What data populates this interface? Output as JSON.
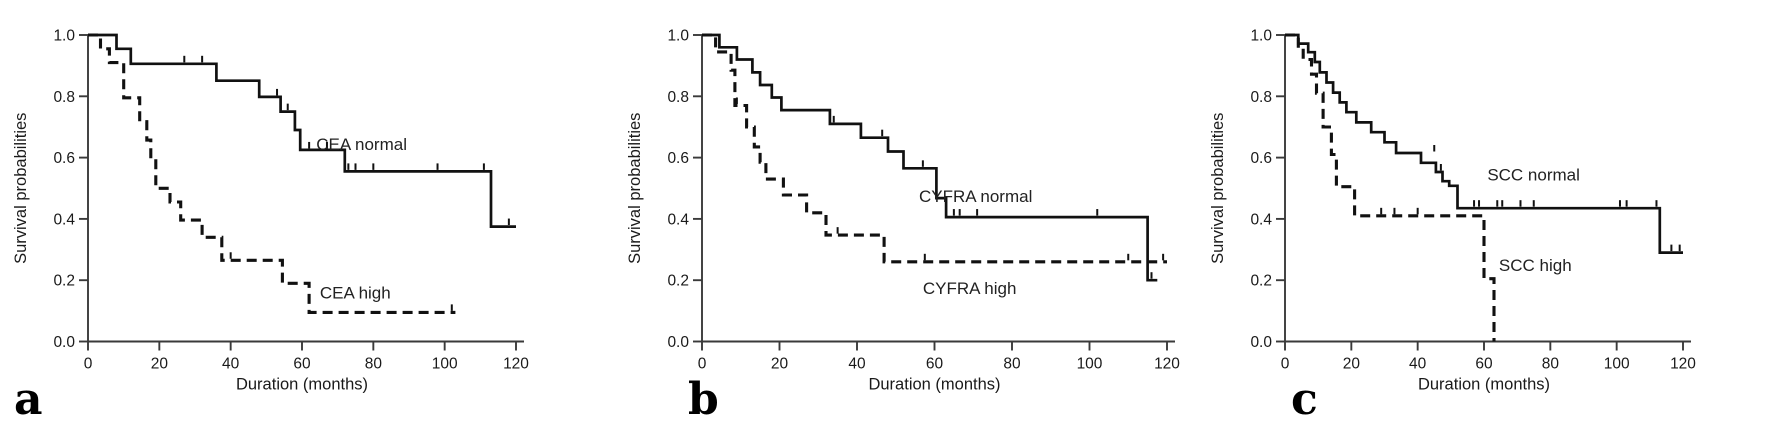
{
  "page": {
    "background": "#ffffff"
  },
  "axes_common": {
    "xlabel": "Duration (months)",
    "ylabel": "Survival probabilities",
    "xticks": [
      "0",
      "20",
      "40",
      "60",
      "80",
      "100",
      "120"
    ],
    "yticks": [
      "0.0",
      "0.2",
      "0.4",
      "0.6",
      "0.8",
      "1.0"
    ],
    "line_color": "#111111",
    "axis_color": "#3a3a3a"
  },
  "chart_data": [
    {
      "type": "line",
      "subtype": "kaplan-meier-step",
      "panel_letter": "a",
      "title": "",
      "xlabel": "Duration (months)",
      "ylabel": "Survival probabilities",
      "xlim": [
        0,
        120
      ],
      "ylim": [
        0.0,
        1.0
      ],
      "xticks": [
        0,
        20,
        40,
        60,
        80,
        100,
        120
      ],
      "yticks": [
        "0.0",
        "0.2",
        "0.4",
        "0.6",
        "0.8",
        "1.0"
      ],
      "grid": false,
      "legend_position": "inline",
      "series": [
        {
          "name": "CEA normal",
          "style": "solid",
          "color": "#111111",
          "label": {
            "text": "CEA normal",
            "x": 64,
            "y": 0.645
          },
          "steps": [
            [
              0,
              1.0
            ],
            [
              8,
              1.0
            ],
            [
              8,
              0.955
            ],
            [
              12,
              0.955
            ],
            [
              12,
              0.906
            ],
            [
              36,
              0.906
            ],
            [
              36,
              0.851
            ],
            [
              48,
              0.851
            ],
            [
              48,
              0.798
            ],
            [
              54,
              0.798
            ],
            [
              54,
              0.75
            ],
            [
              58,
              0.75
            ],
            [
              58,
              0.69
            ],
            [
              59.5,
              0.69
            ],
            [
              59.5,
              0.625
            ],
            [
              72,
              0.625
            ],
            [
              72,
              0.555
            ],
            [
              113,
              0.555
            ],
            [
              113,
              0.375
            ],
            [
              120,
              0.375
            ]
          ],
          "censors": [
            [
              27,
              0.906
            ],
            [
              32,
              0.906
            ],
            [
              53,
              0.798
            ],
            [
              56,
              0.75
            ],
            [
              62,
              0.625
            ],
            [
              67,
              0.625
            ],
            [
              73,
              0.555
            ],
            [
              75,
              0.555
            ],
            [
              80,
              0.555
            ],
            [
              98,
              0.555
            ],
            [
              111,
              0.555
            ],
            [
              118,
              0.375
            ]
          ]
        },
        {
          "name": "CEA high",
          "style": "dashed",
          "color": "#111111",
          "label": {
            "text": "CEA high",
            "x": 65,
            "y": 0.16
          },
          "steps": [
            [
              0,
              1.0
            ],
            [
              3.5,
              1.0
            ],
            [
              3.5,
              0.955
            ],
            [
              6,
              0.955
            ],
            [
              6,
              0.91
            ],
            [
              10,
              0.91
            ],
            [
              10,
              0.795
            ],
            [
              14.5,
              0.795
            ],
            [
              14.5,
              0.717
            ],
            [
              16.5,
              0.717
            ],
            [
              16.5,
              0.657
            ],
            [
              17.6,
              0.657
            ],
            [
              17.6,
              0.598
            ],
            [
              19,
              0.598
            ],
            [
              19,
              0.5
            ],
            [
              23,
              0.5
            ],
            [
              23,
              0.455
            ],
            [
              26,
              0.455
            ],
            [
              26,
              0.396
            ],
            [
              32,
              0.396
            ],
            [
              32,
              0.34
            ],
            [
              37.5,
              0.34
            ],
            [
              37.5,
              0.265
            ],
            [
              54.5,
              0.265
            ],
            [
              54.5,
              0.19
            ],
            [
              62,
              0.19
            ],
            [
              62,
              0.095
            ],
            [
              103,
              0.095
            ]
          ],
          "censors": [
            [
              40,
              0.265
            ],
            [
              102,
              0.095
            ]
          ]
        }
      ]
    },
    {
      "type": "line",
      "subtype": "kaplan-meier-step",
      "panel_letter": "b",
      "title": "",
      "xlabel": "Duration (months)",
      "ylabel": "Survival probabilities",
      "xlim": [
        0,
        120
      ],
      "ylim": [
        0.0,
        1.0
      ],
      "xticks": [
        0,
        20,
        40,
        60,
        80,
        100,
        120
      ],
      "yticks": [
        "0.0",
        "0.2",
        "0.4",
        "0.6",
        "0.8",
        "1.0"
      ],
      "grid": false,
      "legend_position": "inline",
      "series": [
        {
          "name": "CYFRA normal",
          "style": "solid",
          "color": "#111111",
          "label": {
            "text": "CYFRA normal",
            "x": 56,
            "y": 0.475
          },
          "steps": [
            [
              0,
              1.0
            ],
            [
              4.5,
              1.0
            ],
            [
              4.5,
              0.96
            ],
            [
              9,
              0.96
            ],
            [
              9,
              0.92
            ],
            [
              13,
              0.92
            ],
            [
              13,
              0.878
            ],
            [
              15,
              0.878
            ],
            [
              15,
              0.837
            ],
            [
              18,
              0.837
            ],
            [
              18,
              0.796
            ],
            [
              20.5,
              0.796
            ],
            [
              20.5,
              0.755
            ],
            [
              33,
              0.755
            ],
            [
              33,
              0.71
            ],
            [
              41,
              0.71
            ],
            [
              41,
              0.665
            ],
            [
              48,
              0.665
            ],
            [
              48,
              0.62
            ],
            [
              52,
              0.62
            ],
            [
              52,
              0.565
            ],
            [
              60.5,
              0.565
            ],
            [
              60.5,
              0.468
            ],
            [
              63,
              0.468
            ],
            [
              63,
              0.406
            ],
            [
              115,
              0.406
            ],
            [
              115,
              0.2
            ],
            [
              117.5,
              0.2
            ]
          ],
          "censors": [
            [
              34,
              0.71
            ],
            [
              46.5,
              0.665
            ],
            [
              57,
              0.565
            ],
            [
              65,
              0.406
            ],
            [
              66.5,
              0.406
            ],
            [
              71,
              0.406
            ],
            [
              102,
              0.406
            ],
            [
              116,
              0.2
            ]
          ]
        },
        {
          "name": "CYFRA high",
          "style": "dashed",
          "color": "#111111",
          "label": {
            "text": "CYFRA high",
            "x": 57,
            "y": 0.175
          },
          "steps": [
            [
              0,
              1.0
            ],
            [
              3.5,
              1.0
            ],
            [
              3.5,
              0.945
            ],
            [
              7.5,
              0.945
            ],
            [
              7.5,
              0.885
            ],
            [
              8.5,
              0.885
            ],
            [
              8.5,
              0.77
            ],
            [
              11.5,
              0.77
            ],
            [
              11.5,
              0.7
            ],
            [
              13.5,
              0.7
            ],
            [
              13.5,
              0.635
            ],
            [
              15,
              0.635
            ],
            [
              15,
              0.585
            ],
            [
              16.5,
              0.585
            ],
            [
              16.5,
              0.53
            ],
            [
              21,
              0.53
            ],
            [
              21,
              0.478
            ],
            [
              27,
              0.478
            ],
            [
              27,
              0.42
            ],
            [
              32,
              0.42
            ],
            [
              32,
              0.347
            ],
            [
              47,
              0.347
            ],
            [
              47,
              0.26
            ],
            [
              120,
              0.26
            ]
          ],
          "censors": [
            [
              9,
              0.77
            ],
            [
              35,
              0.347
            ],
            [
              57.5,
              0.26
            ],
            [
              110,
              0.26
            ],
            [
              119,
              0.26
            ]
          ]
        }
      ]
    },
    {
      "type": "line",
      "subtype": "kaplan-meier-step",
      "panel_letter": "c",
      "title": "",
      "xlabel": "Duration (months)",
      "ylabel": "Survival probabilities",
      "xlim": [
        0,
        120
      ],
      "ylim": [
        0.0,
        1.0
      ],
      "xticks": [
        0,
        20,
        40,
        60,
        80,
        100,
        120
      ],
      "yticks": [
        "0.0",
        "0.2",
        "0.4",
        "0.6",
        "0.8",
        "1.0"
      ],
      "grid": false,
      "legend_position": "inline",
      "series": [
        {
          "name": "SCC normal",
          "style": "solid",
          "color": "#111111",
          "label": {
            "text": "SCC normal",
            "x": 61,
            "y": 0.545
          },
          "steps": [
            [
              0,
              1.0
            ],
            [
              4,
              1.0
            ],
            [
              4,
              0.972
            ],
            [
              7,
              0.972
            ],
            [
              7,
              0.944
            ],
            [
              9,
              0.944
            ],
            [
              9,
              0.912
            ],
            [
              10.5,
              0.912
            ],
            [
              10.5,
              0.878
            ],
            [
              12.5,
              0.878
            ],
            [
              12.5,
              0.845
            ],
            [
              14.5,
              0.845
            ],
            [
              14.5,
              0.812
            ],
            [
              16.5,
              0.812
            ],
            [
              16.5,
              0.78
            ],
            [
              18.5,
              0.78
            ],
            [
              18.5,
              0.748
            ],
            [
              21.5,
              0.748
            ],
            [
              21.5,
              0.715
            ],
            [
              26,
              0.715
            ],
            [
              26,
              0.683
            ],
            [
              30,
              0.683
            ],
            [
              30,
              0.65
            ],
            [
              33.5,
              0.65
            ],
            [
              33.5,
              0.615
            ],
            [
              41,
              0.615
            ],
            [
              41,
              0.583
            ],
            [
              45.5,
              0.583
            ],
            [
              45.5,
              0.553
            ],
            [
              47.5,
              0.553
            ],
            [
              47.5,
              0.523
            ],
            [
              49.5,
              0.523
            ],
            [
              49.5,
              0.508
            ],
            [
              52,
              0.508
            ],
            [
              52,
              0.435
            ],
            [
              113,
              0.435
            ],
            [
              113,
              0.29
            ],
            [
              120,
              0.29
            ]
          ],
          "censors": [
            [
              45,
              0.615
            ],
            [
              47,
              0.553
            ],
            [
              57,
              0.435
            ],
            [
              58.5,
              0.435
            ],
            [
              64,
              0.435
            ],
            [
              65.5,
              0.435
            ],
            [
              71,
              0.435
            ],
            [
              75,
              0.435
            ],
            [
              101,
              0.435
            ],
            [
              103,
              0.435
            ],
            [
              112,
              0.435
            ],
            [
              116.5,
              0.29
            ],
            [
              119,
              0.29
            ]
          ]
        },
        {
          "name": "SCC high",
          "style": "dashed",
          "color": "#111111",
          "label": {
            "text": "SCC high",
            "x": 64.5,
            "y": 0.25
          },
          "steps": [
            [
              0,
              1.0
            ],
            [
              4,
              1.0
            ],
            [
              4,
              0.957
            ],
            [
              5.5,
              0.957
            ],
            [
              5.5,
              0.92
            ],
            [
              8,
              0.92
            ],
            [
              8,
              0.872
            ],
            [
              9.5,
              0.872
            ],
            [
              9.5,
              0.81
            ],
            [
              11.5,
              0.81
            ],
            [
              11.5,
              0.7
            ],
            [
              14,
              0.7
            ],
            [
              14,
              0.61
            ],
            [
              15.5,
              0.61
            ],
            [
              15.5,
              0.505
            ],
            [
              21,
              0.505
            ],
            [
              21,
              0.41
            ],
            [
              60,
              0.41
            ],
            [
              60,
              0.205
            ],
            [
              63,
              0.205
            ],
            [
              63,
              0.0
            ]
          ],
          "censors": [
            [
              29,
              0.41
            ],
            [
              33,
              0.41
            ],
            [
              40,
              0.41
            ]
          ]
        }
      ]
    }
  ]
}
